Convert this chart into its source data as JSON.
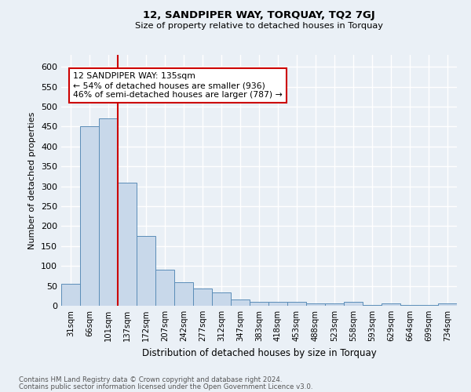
{
  "title": "12, SANDPIPER WAY, TORQUAY, TQ2 7GJ",
  "subtitle": "Size of property relative to detached houses in Torquay",
  "xlabel": "Distribution of detached houses by size in Torquay",
  "ylabel": "Number of detached properties",
  "footnote1": "Contains HM Land Registry data © Crown copyright and database right 2024.",
  "footnote2": "Contains public sector information licensed under the Open Government Licence v3.0.",
  "categories": [
    "31sqm",
    "66sqm",
    "101sqm",
    "137sqm",
    "172sqm",
    "207sqm",
    "242sqm",
    "277sqm",
    "312sqm",
    "347sqm",
    "383sqm",
    "418sqm",
    "453sqm",
    "488sqm",
    "523sqm",
    "558sqm",
    "593sqm",
    "629sqm",
    "664sqm",
    "699sqm",
    "734sqm"
  ],
  "values": [
    55,
    450,
    470,
    310,
    175,
    90,
    60,
    43,
    33,
    15,
    10,
    10,
    10,
    5,
    5,
    10,
    2,
    5,
    2,
    2,
    5
  ],
  "bar_color": "#c8d8ea",
  "bar_edge_color": "#5b8db8",
  "vline_x": 2.5,
  "vline_color": "#cc0000",
  "annotation_text": "12 SANDPIPER WAY: 135sqm\n← 54% of detached houses are smaller (936)\n46% of semi-detached houses are larger (787) →",
  "annotation_box_color": "#ffffff",
  "annotation_box_edge": "#cc0000",
  "bg_color": "#eaf0f6",
  "grid_color": "#ffffff",
  "ylim": [
    0,
    630
  ],
  "yticks": [
    0,
    50,
    100,
    150,
    200,
    250,
    300,
    350,
    400,
    450,
    500,
    550,
    600
  ]
}
